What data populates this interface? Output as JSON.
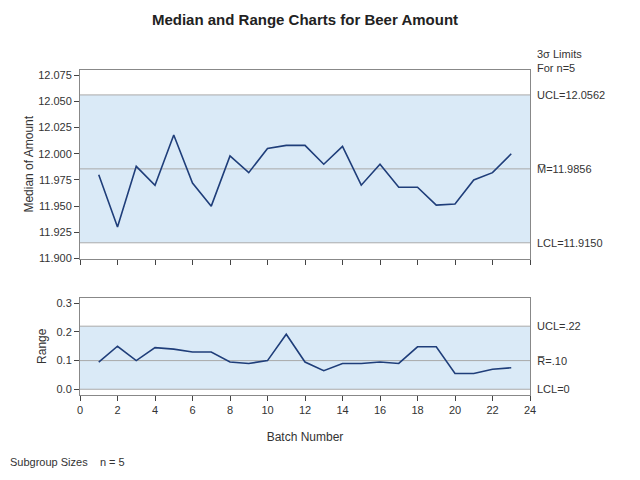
{
  "chart_data": [
    {
      "type": "line",
      "title": "Median and Range Charts for Beer Amount",
      "ylabel": "Median of Amount",
      "x": [
        1,
        2,
        3,
        4,
        5,
        6,
        7,
        8,
        9,
        10,
        11,
        12,
        13,
        14,
        15,
        16,
        17,
        18,
        19,
        20,
        21,
        22,
        23
      ],
      "values": [
        11.98,
        11.93,
        11.988,
        11.97,
        12.018,
        11.972,
        11.95,
        11.998,
        11.982,
        12.005,
        12.008,
        12.008,
        11.99,
        12.007,
        11.97,
        11.99,
        11.968,
        11.968,
        11.951,
        11.952,
        11.975,
        11.982,
        12.0
      ],
      "color": "#1F3E7A",
      "xlim": [
        0,
        24
      ],
      "xticks": [
        0,
        2,
        4,
        6,
        8,
        10,
        12,
        14,
        16,
        18,
        20,
        22,
        24
      ],
      "ylim": [
        11.9,
        12.08
      ],
      "yticks": [
        {
          "value": 11.9,
          "label": "11.900"
        },
        {
          "value": 11.925,
          "label": "11.925"
        },
        {
          "value": 11.95,
          "label": "11.950"
        },
        {
          "value": 11.975,
          "label": "11.975"
        },
        {
          "value": 12.0,
          "label": "12.000"
        },
        {
          "value": 12.025,
          "label": "12.025"
        },
        {
          "value": 12.05,
          "label": "12.050"
        },
        {
          "value": 12.075,
          "label": "12.075"
        }
      ],
      "tick_labels": "y",
      "grid": false,
      "band": {
        "lower": 11.915,
        "upper": 12.0562,
        "color": "#DAEAF7"
      },
      "control_limits": [
        {
          "value": 12.0562,
          "label": "UCL=12.0562",
          "color": "#aaaaaa"
        },
        {
          "value": 11.9856,
          "label": "M̅=11.9856",
          "color": "#aaaaaa"
        },
        {
          "value": 11.915,
          "label": "LCL=11.9150",
          "color": "#aaaaaa"
        }
      ],
      "annotations": [
        "3σ Limits\nFor n=5"
      ]
    },
    {
      "type": "line",
      "xlabel": "Batch Number",
      "ylabel": "Range",
      "x": [
        1,
        2,
        3,
        4,
        5,
        6,
        7,
        8,
        9,
        10,
        11,
        12,
        13,
        14,
        15,
        16,
        17,
        18,
        19,
        20,
        21,
        22,
        23
      ],
      "values": [
        0.095,
        0.15,
        0.1,
        0.145,
        0.14,
        0.13,
        0.13,
        0.095,
        0.09,
        0.1,
        0.192,
        0.095,
        0.065,
        0.09,
        0.09,
        0.095,
        0.09,
        0.148,
        0.148,
        0.055,
        0.055,
        0.07,
        0.075
      ],
      "color": "#1F3E7A",
      "xlim": [
        0,
        24
      ],
      "xticks": [
        0,
        2,
        4,
        6,
        8,
        10,
        12,
        14,
        16,
        18,
        20,
        22,
        24
      ],
      "ylim": [
        -0.02,
        0.32
      ],
      "yticks": [
        {
          "value": 0.0,
          "label": "0.0"
        },
        0.1,
        0.2,
        0.3
      ],
      "grid": false,
      "band": {
        "lower": 0,
        "upper": 0.22,
        "color": "#DAEAF7"
      },
      "control_limits": [
        {
          "value": 0.22,
          "label": "UCL=.22",
          "color": "#aaaaaa"
        },
        {
          "value": 0.1,
          "label": "R̅=.10",
          "color": "#aaaaaa"
        },
        {
          "value": 0,
          "label": "LCL=0",
          "color": "#aaaaaa"
        }
      ],
      "annotations": [
        "Subgroup Sizes    n = 5"
      ]
    }
  ]
}
